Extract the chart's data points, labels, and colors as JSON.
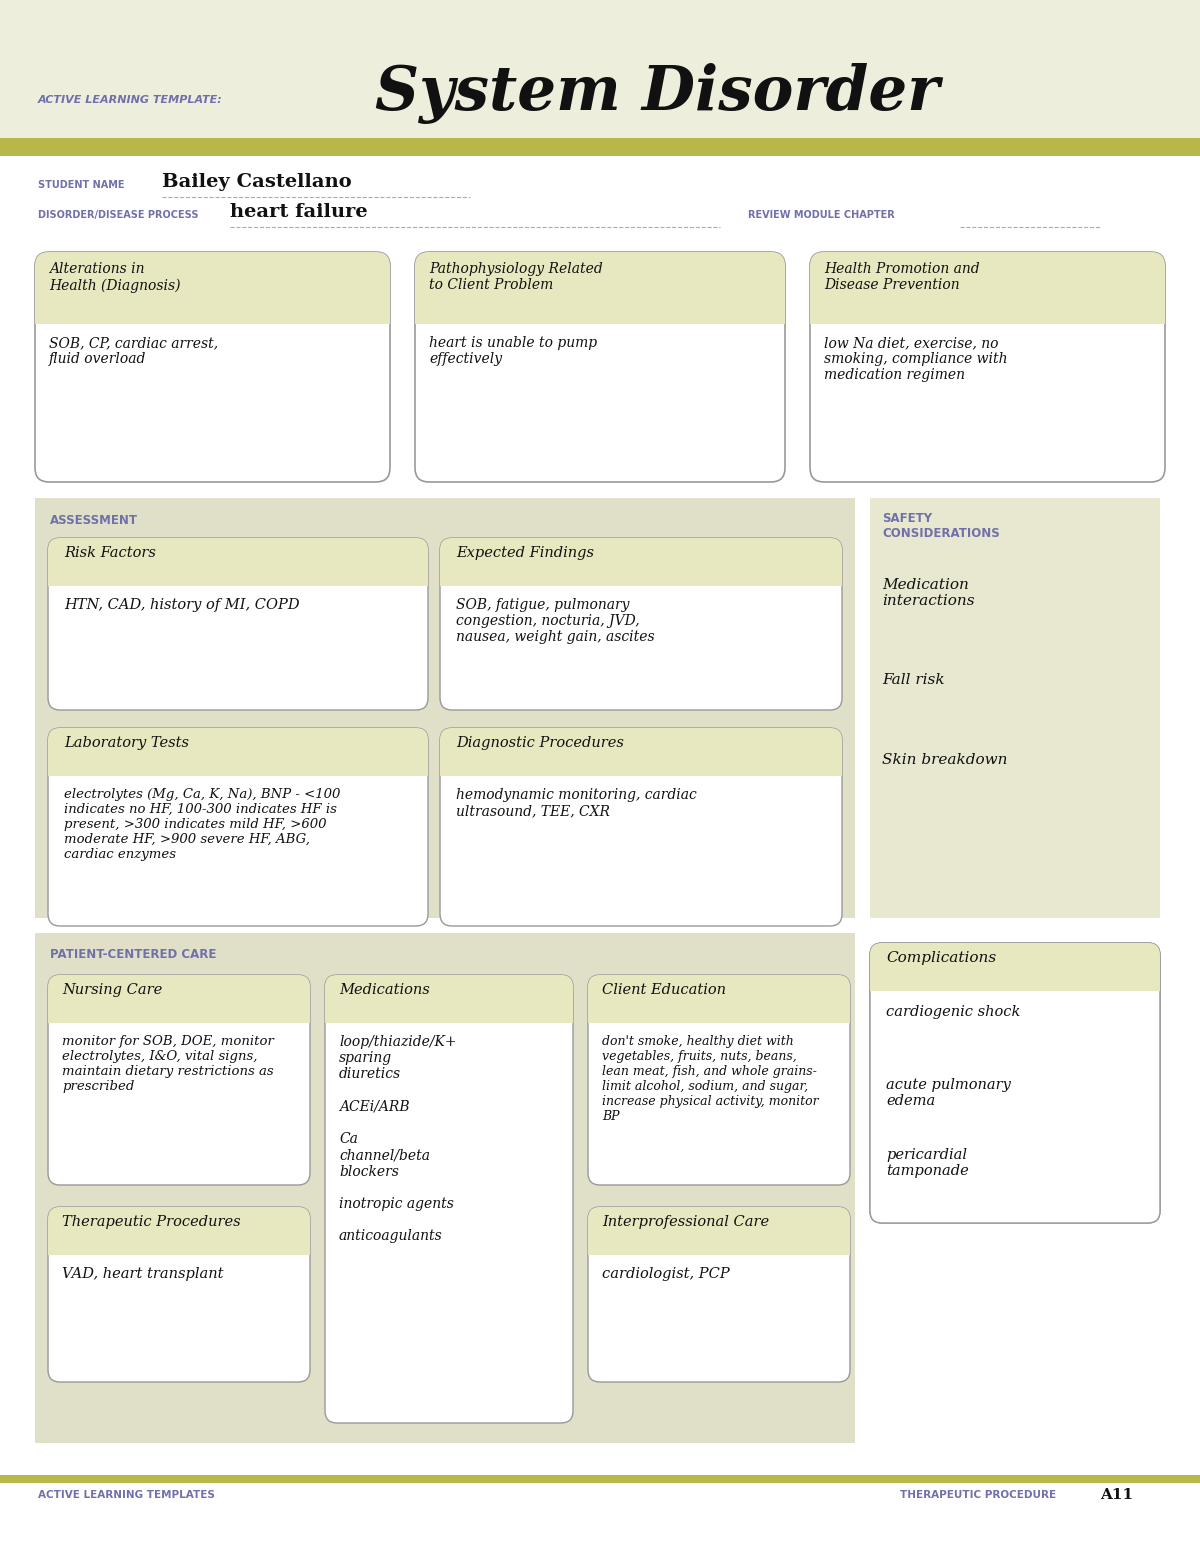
{
  "page_bg_top": "#eeeedd",
  "page_bg_body": "#ffffff",
  "header_strip_color": "#b8b84a",
  "box_header_bg": "#e8e8c0",
  "section_panel_bg": "#e0e0c8",
  "comp_panel_bg": "#e8e8d0",
  "white": "#ffffff",
  "box_border": "#999999",
  "label_color": "#7070aa",
  "dark_text": "#111111",
  "header_label": "ACTIVE LEARNING TEMPLATE:",
  "header_title": "System Disorder",
  "student_label": "STUDENT NAME",
  "student_name": "Bailey Castellano",
  "disorder_label": "DISORDER/DISEASE PROCESS",
  "disorder_name": "heart failure",
  "review_label": "REVIEW MODULE CHAPTER",
  "top_boxes": [
    {
      "title": "Alterations in\nHealth (Diagnosis)",
      "content": "SOB, CP, cardiac arrest,\nfluid overload"
    },
    {
      "title": "Pathophysiology Related\nto Client Problem",
      "content": "heart is unable to pump\neffectively"
    },
    {
      "title": "Health Promotion and\nDisease Prevention",
      "content": "low Na diet, exercise, no\nsmoking, compliance with\nmedication regimen"
    }
  ],
  "assessment_label": "ASSESSMENT",
  "safety_label": "SAFETY\nCONSIDERATIONS",
  "safety_items": [
    "Medication\ninteractions",
    "Fall risk",
    "Skin breakdown"
  ],
  "assessment_boxes": [
    {
      "title": "Risk Factors",
      "content": "HTN, CAD, history of MI, COPD"
    },
    {
      "title": "Expected Findings",
      "content": "SOB, fatigue, pulmonary\ncongestion, nocturia, JVD,\nnausea, weight gain, ascites"
    },
    {
      "title": "Laboratory Tests",
      "content": "electrolytes (Mg, Ca, K, Na), BNP - <100\nindicates no HF, 100-300 indicates HF is\npresent, >300 indicates mild HF, >600\nmoderate HF, >900 severe HF, ABG,\ncardiac enzymes"
    },
    {
      "title": "Diagnostic Procedures",
      "content": "hemodynamic monitoring, cardiac\nultrasound, TEE, CXR"
    }
  ],
  "patient_label": "PATIENT-CENTERED CARE",
  "complications_label": "Complications",
  "complications_items": [
    "cardiogenic shock",
    "acute pulmonary\nedema",
    "pericardial\ntamponade"
  ],
  "nursing_care": {
    "title": "Nursing Care",
    "content": "monitor for SOB, DOE, monitor\nelectrolytes, I&O, vital signs,\nmaintain dietary restrictions as\nprescribed"
  },
  "medications": {
    "title": "Medications",
    "content": "loop/thiazide/K+\nsparing\ndiuretics\n\nACEi/ARB\n\nCa\nchannel/beta\nblockers\n\ninotropic agents\n\nanticoagulants"
  },
  "client_education": {
    "title": "Client Education",
    "content": "don't smoke, healthy diet with\nvegetables, fruits, nuts, beans,\nlean meat, fish, and whole grains-\nlimit alcohol, sodium, and sugar,\nincrease physical activity, monitor\nBP"
  },
  "therapeutic": {
    "title": "Therapeutic Procedures",
    "content": "VAD, heart transplant"
  },
  "interprofessional": {
    "title": "Interprofessional Care",
    "content": "cardiologist, PCP"
  },
  "footer_left": "ACTIVE LEARNING TEMPLATES",
  "footer_right": "THERAPEUTIC PROCEDURE",
  "footer_page": "A11"
}
